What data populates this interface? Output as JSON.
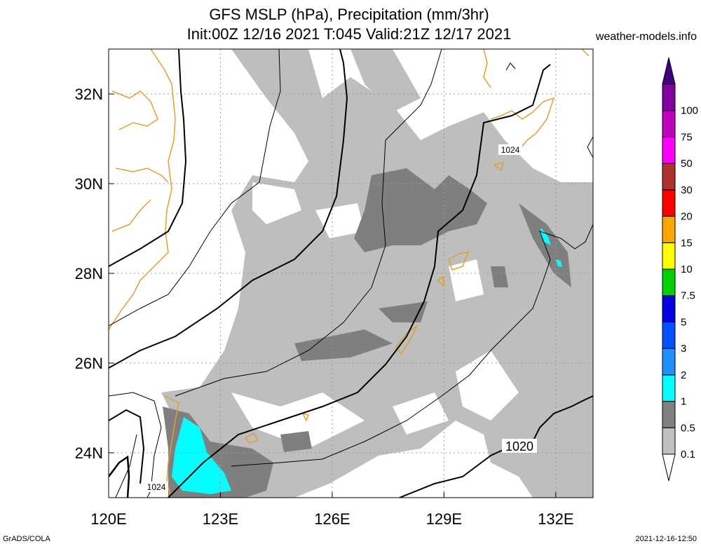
{
  "header": {
    "title_line1": "GFS MSLP (hPa), Precipitation (mm/3hr)",
    "title_line2": "Init:00Z 12/16 2021 T:045 Valid:21Z 12/17 2021",
    "credit": "weather-models.info"
  },
  "map": {
    "lon_range": [
      120,
      133
    ],
    "lat_range": [
      23,
      33
    ],
    "lon_ticks": [
      {
        "value": 120,
        "label": "120E"
      },
      {
        "value": 123,
        "label": "123E"
      },
      {
        "value": 126,
        "label": "126E"
      },
      {
        "value": 129,
        "label": "129E"
      },
      {
        "value": 132,
        "label": "132E"
      }
    ],
    "lat_ticks": [
      {
        "value": 24,
        "label": "24N"
      },
      {
        "value": 26,
        "label": "26N"
      },
      {
        "value": 28,
        "label": "28N"
      },
      {
        "value": 30,
        "label": "30N"
      },
      {
        "value": 32,
        "label": "32N"
      }
    ],
    "isobar_labels": [
      "1024",
      "1024",
      "1020"
    ],
    "colors": {
      "coastline": "#e0a030",
      "grid": "#9a9a9a",
      "precip_light": "#bebebe",
      "precip_medium": "#7f7f7f",
      "precip_cyan": "#00ffff"
    }
  },
  "colorbar": {
    "levels": [
      {
        "label": "0.1",
        "color": "#c0c0c0"
      },
      {
        "label": "0.5",
        "color": "#808080"
      },
      {
        "label": "1",
        "color": "#00ffff"
      },
      {
        "label": "2",
        "color": "#1e90ff"
      },
      {
        "label": "3",
        "color": "#0050ff"
      },
      {
        "label": "5",
        "color": "#0000e0"
      },
      {
        "label": "7.5",
        "color": "#00d000"
      },
      {
        "label": "10",
        "color": "#ffff00"
      },
      {
        "label": "15",
        "color": "#ffa500"
      },
      {
        "label": "20",
        "color": "#ff0000"
      },
      {
        "label": "30",
        "color": "#b03030"
      },
      {
        "label": "50",
        "color": "#ff00ff"
      },
      {
        "label": "75",
        "color": "#c000c0"
      },
      {
        "label": "100",
        "color": "#8000a0"
      }
    ],
    "top_color": "#400080"
  },
  "footer": {
    "left": "GrADS/COLA",
    "right": "2021-12-16-12:50"
  }
}
